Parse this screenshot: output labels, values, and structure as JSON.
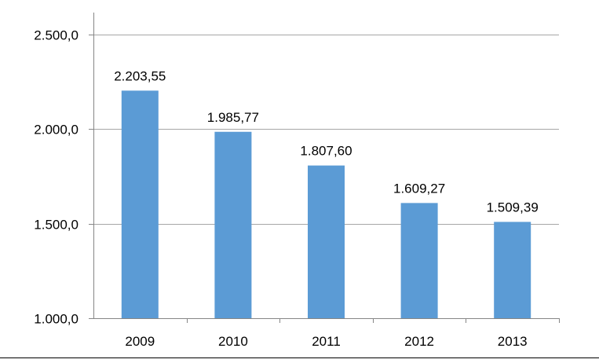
{
  "chart_data": {
    "type": "bar",
    "categories": [
      "2009",
      "2010",
      "2011",
      "2012",
      "2013"
    ],
    "series": [
      {
        "values": [
          2203.55,
          1985.77,
          1807.6,
          1609.27,
          1509.39
        ],
        "value_labels": [
          "2.203,55",
          "1.985,77",
          "1.807,60",
          "1.609,27",
          "1.509,39"
        ],
        "color": "#5b9bd5"
      }
    ],
    "ylim": [
      1000,
      2500
    ],
    "yticks": [
      1000,
      1500,
      2000,
      2500
    ],
    "ytick_labels": [
      "1.000,0",
      "1.500,0",
      "2.000,0",
      "2.500,0"
    ],
    "grid": true,
    "legend": "none",
    "title": "",
    "xlabel": "",
    "ylabel": ""
  },
  "colors": {
    "bar": "#5b9bd5",
    "gridline": "#a6a6a6",
    "axis": "#868686"
  }
}
